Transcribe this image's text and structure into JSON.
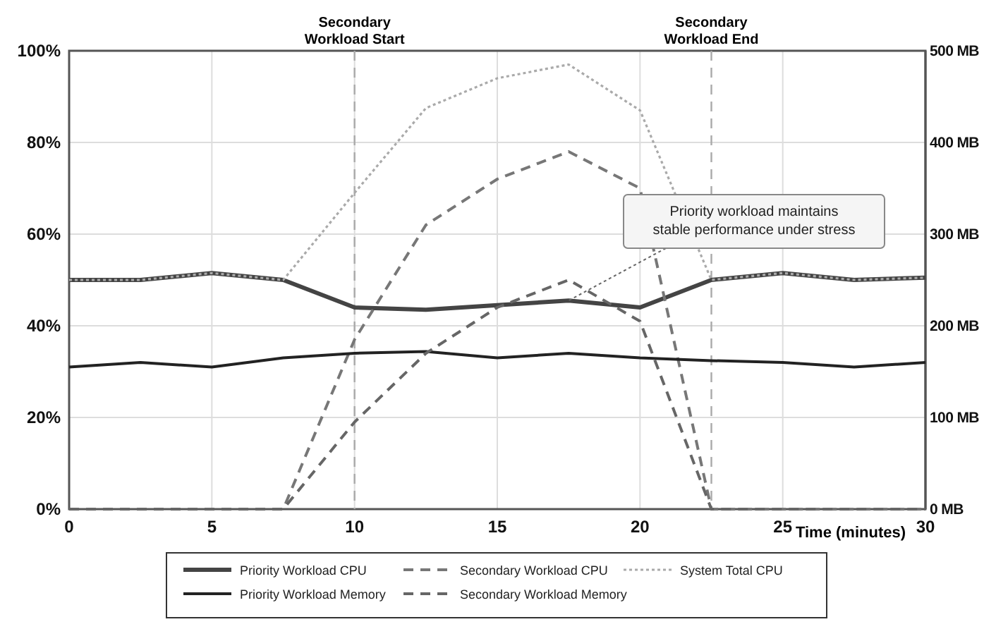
{
  "chart_data": {
    "type": "line",
    "x": [
      0,
      2.5,
      5,
      7.5,
      10,
      12.5,
      15,
      17.5,
      20,
      22.5,
      25,
      27.5,
      30
    ],
    "xlabel": "Time (minutes)",
    "xlim": [
      0,
      30
    ],
    "xticks": [
      0,
      5,
      10,
      15,
      20,
      25,
      30
    ],
    "ylim": [
      0,
      100
    ],
    "yticks": [
      {
        "value": 0,
        "label": "0%"
      },
      {
        "value": 20,
        "label": "20%"
      },
      {
        "value": 40,
        "label": "40%"
      },
      {
        "value": 60,
        "label": "60%"
      },
      {
        "value": 80,
        "label": "80%"
      },
      {
        "value": 100,
        "label": "100%"
      }
    ],
    "y2lim": [
      0,
      500
    ],
    "y2ticks": [
      {
        "value": 0,
        "label": "0 MB"
      },
      {
        "value": 100,
        "label": "100 MB"
      },
      {
        "value": 200,
        "label": "200 MB"
      },
      {
        "value": 300,
        "label": "300 MB"
      },
      {
        "value": 400,
        "label": "400 MB"
      },
      {
        "value": 500,
        "label": "500 MB"
      }
    ],
    "grid": true,
    "legend": "bottom",
    "marker": "none",
    "series": [
      {
        "name": "Priority Workload CPU",
        "color": "#444444",
        "line_style": "solid",
        "values": [
          50,
          50,
          51.5,
          50,
          44,
          43.5,
          44.5,
          45.5,
          44,
          50,
          51.5,
          50,
          50.5
        ]
      },
      {
        "name": "Secondary Workload CPU",
        "color": "#777777",
        "line_style": "dashed",
        "values": [
          0,
          0,
          0,
          0,
          37,
          62,
          72,
          78,
          70,
          0,
          0,
          0,
          0
        ]
      },
      {
        "name": "System Total CPU",
        "color": "#aaaaaa",
        "line_style": "dotted",
        "values": [
          50,
          50,
          51.5,
          50,
          69,
          87.5,
          94,
          97,
          87,
          50,
          51.5,
          50,
          50.5
        ]
      },
      {
        "name": "Priority Workload Memory",
        "color": "#222222",
        "line_style": "solid",
        "axis": "y2",
        "values": [
          155,
          160,
          155,
          165,
          170,
          172,
          165,
          170,
          165,
          162,
          160,
          155,
          160
        ]
      },
      {
        "name": "Secondary Workload Memory",
        "color": "#666666",
        "line_style": "dashed",
        "axis": "y2",
        "values": [
          0,
          0,
          0,
          0,
          95,
          170,
          220,
          250,
          205,
          0,
          0,
          0,
          0
        ]
      }
    ],
    "ref_lines": [
      {
        "axis": "x",
        "value": 10,
        "label": "Secondary\nWorkload Start",
        "color": "#aaaaaa",
        "line_style": "dashed"
      },
      {
        "axis": "x",
        "value": 22.5,
        "label": "Secondary\nWorkload End",
        "color": "#aaaaaa",
        "line_style": "dashed"
      }
    ],
    "annotations": [
      {
        "text": "Priority workload maintains\nstable performance under stress",
        "x": 17.5,
        "y": 45.5
      }
    ]
  }
}
